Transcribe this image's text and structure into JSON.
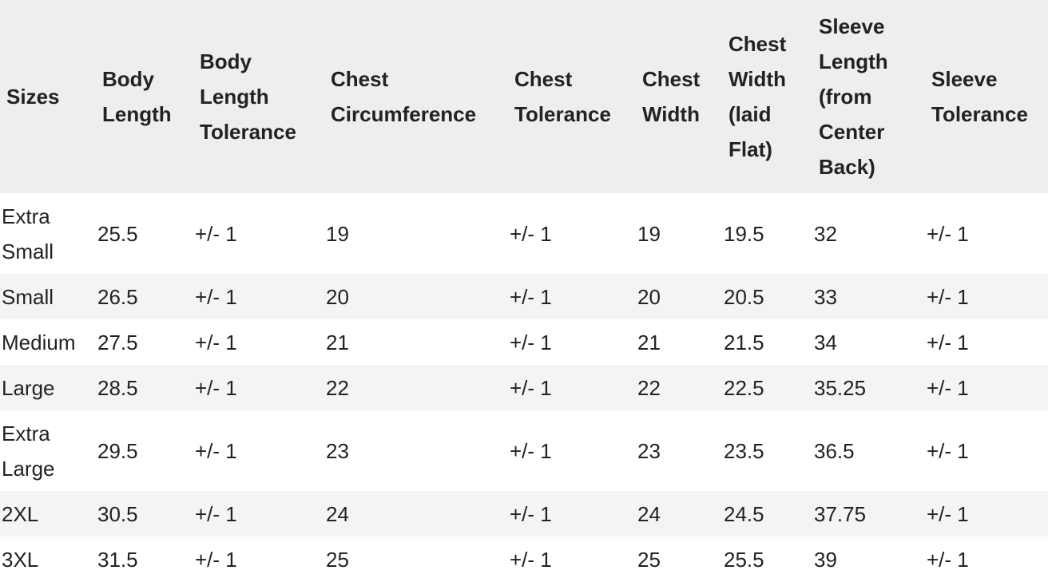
{
  "table": {
    "header": [
      "Sizes",
      "Body Length",
      "Body Length Tolerance",
      "Chest Circumference",
      "Chest Tolerance",
      "Chest Width",
      "Chest Width (laid Flat)",
      "Sleeve Length (from Center Back)",
      "Sleeve Tolerance"
    ],
    "rows": [
      [
        "Extra Small",
        "25.5",
        "+/- 1",
        "19",
        "+/- 1",
        "19",
        "19.5",
        "32",
        "+/- 1"
      ],
      [
        "Small",
        "26.5",
        "+/- 1",
        "20",
        "+/- 1",
        "20",
        "20.5",
        "33",
        "+/- 1"
      ],
      [
        "Medium",
        "27.5",
        "+/- 1",
        "21",
        "+/- 1",
        "21",
        "21.5",
        "34",
        "+/- 1"
      ],
      [
        "Large",
        "28.5",
        "+/- 1",
        "22",
        "+/- 1",
        "22",
        "22.5",
        "35.25",
        "+/- 1"
      ],
      [
        "Extra Large",
        "29.5",
        "+/- 1",
        "23",
        "+/- 1",
        "23",
        "23.5",
        "36.5",
        "+/- 1"
      ],
      [
        "2XL",
        "30.5",
        "+/- 1",
        "24",
        "+/- 1",
        "24",
        "24.5",
        "37.75",
        "+/- 1"
      ],
      [
        "3XL",
        "31.5",
        "+/- 1",
        "25",
        "+/- 1",
        "25",
        "25.5",
        "39",
        "+/- 1"
      ]
    ]
  }
}
